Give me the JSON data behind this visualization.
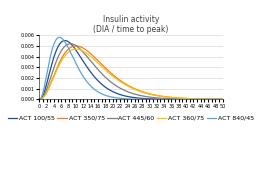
{
  "title_line1": "Insulin activity",
  "title_line2": "(DIA / time to peak)",
  "curve_params": [
    {
      "label": "ACT 100/55",
      "color": "#1F4E96",
      "tp": 7.0,
      "peak_scale": 0.0055
    },
    {
      "label": "ACT 350/75",
      "color": "#ED7D31",
      "tp": 10.0,
      "peak_scale": 0.005
    },
    {
      "label": "ACT 445/60",
      "color": "#7F7F7F",
      "tp": 8.5,
      "peak_scale": 0.0052
    },
    {
      "label": "ACT 360/75",
      "color": "#FFC000",
      "tp": 10.0,
      "peak_scale": 0.0047
    },
    {
      "label": "ACT 840/45",
      "color": "#5BA3D9",
      "tp": 5.5,
      "peak_scale": 0.0058
    }
  ],
  "alpha": 2.5,
  "xlim": [
    0,
    50
  ],
  "ylim": [
    0,
    0.006
  ],
  "yticks": [
    0.0,
    0.001,
    0.002,
    0.003,
    0.004,
    0.005,
    0.006
  ],
  "bg_color": "#FFFFFF",
  "grid_color": "#D9D9D9",
  "title_fontsize": 5.5,
  "tick_fontsize": 3.5,
  "legend_fontsize": 4.5,
  "linewidth": 0.9
}
